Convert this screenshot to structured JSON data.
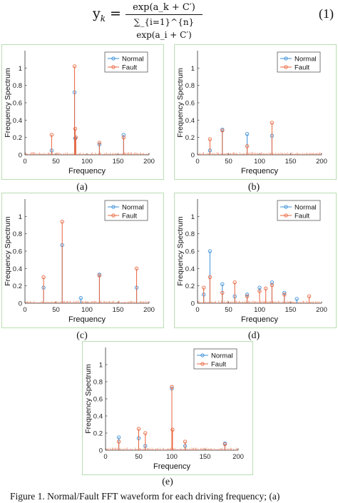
{
  "equation": {
    "lhs": "y",
    "lhs_sub": "k",
    "numerator": "exp(a_k + C′)",
    "denominator": "∑_{i=1}^{n} exp(a_i + C′)",
    "number": "(1)"
  },
  "axis_labels": {
    "x": "Frequency",
    "y": "Frequency Spectrum"
  },
  "legend": {
    "normal": "Normal",
    "fault": "Fault"
  },
  "colors": {
    "normal": "#3a8fd9",
    "fault": "#e8643c",
    "panel_border": "#b9deb3"
  },
  "figure_caption": "Figure 1.   Normal/Fault FFT waveform for each driving frequency; (a)",
  "chart_data": [
    {
      "type": "line",
      "panel": "(a)",
      "xlim": [
        0,
        200
      ],
      "ylim": [
        0,
        1.2
      ],
      "xticks": [
        0,
        50,
        100,
        150,
        200
      ],
      "yticks": [
        0,
        0.2,
        0.4,
        0.6,
        0.8,
        1
      ],
      "series": [
        {
          "name": "Normal",
          "x": [
            43,
            80,
            81,
            120,
            159
          ],
          "y": [
            0.05,
            0.72,
            0.19,
            0.12,
            0.23
          ]
        },
        {
          "name": "Fault",
          "x": [
            43,
            80,
            81,
            82,
            120,
            159
          ],
          "y": [
            0.23,
            1.02,
            0.3,
            0.2,
            0.14,
            0.2
          ]
        }
      ]
    },
    {
      "type": "line",
      "panel": "(b)",
      "xlim": [
        0,
        200
      ],
      "ylim": [
        0,
        1.2
      ],
      "xticks": [
        0,
        50,
        100,
        150,
        200
      ],
      "yticks": [
        0,
        0.2,
        0.4,
        0.6,
        0.8,
        1
      ],
      "series": [
        {
          "name": "Normal",
          "x": [
            20,
            40,
            80,
            120
          ],
          "y": [
            0.05,
            0.29,
            0.24,
            0.22
          ]
        },
        {
          "name": "Fault",
          "x": [
            20,
            40,
            80,
            120
          ],
          "y": [
            0.18,
            0.28,
            0.1,
            0.37
          ]
        }
      ]
    },
    {
      "type": "line",
      "panel": "(c)",
      "xlim": [
        0,
        200
      ],
      "ylim": [
        0,
        1.2
      ],
      "xticks": [
        0,
        50,
        100,
        150,
        200
      ],
      "yticks": [
        0,
        0.2,
        0.4,
        0.6,
        0.8,
        1
      ],
      "series": [
        {
          "name": "Normal",
          "x": [
            30,
            60,
            90,
            120,
            180
          ],
          "y": [
            0.18,
            0.67,
            0.06,
            0.33,
            0.18
          ]
        },
        {
          "name": "Fault",
          "x": [
            30,
            60,
            120,
            180
          ],
          "y": [
            0.3,
            0.94,
            0.32,
            0.4
          ]
        }
      ]
    },
    {
      "type": "line",
      "panel": "(d)",
      "xlim": [
        0,
        200
      ],
      "ylim": [
        0,
        1.2
      ],
      "xticks": [
        0,
        50,
        100,
        150,
        200
      ],
      "yticks": [
        0,
        0.2,
        0.4,
        0.6,
        0.8,
        1
      ],
      "series": [
        {
          "name": "Normal",
          "x": [
            10,
            20,
            40,
            60,
            80,
            100,
            120,
            140,
            160
          ],
          "y": [
            0.1,
            0.6,
            0.22,
            0.08,
            0.1,
            0.18,
            0.24,
            0.12,
            0.05
          ]
        },
        {
          "name": "Fault",
          "x": [
            10,
            20,
            40,
            60,
            80,
            100,
            110,
            120,
            140,
            180
          ],
          "y": [
            0.18,
            0.3,
            0.12,
            0.24,
            0.08,
            0.14,
            0.17,
            0.21,
            0.1,
            0.08
          ]
        }
      ]
    },
    {
      "type": "line",
      "panel": "(e)",
      "xlim": [
        0,
        200
      ],
      "ylim": [
        0,
        1.2
      ],
      "xticks": [
        0,
        50,
        100,
        150,
        200
      ],
      "yticks": [
        0,
        0.2,
        0.4,
        0.6,
        0.8,
        1
      ],
      "series": [
        {
          "name": "Normal",
          "x": [
            20,
            50,
            60,
            100,
            120,
            180
          ],
          "y": [
            0.15,
            0.14,
            0.05,
            0.72,
            0.05,
            0.08
          ]
        },
        {
          "name": "Fault",
          "x": [
            20,
            50,
            60,
            100,
            101,
            120,
            180
          ],
          "y": [
            0.1,
            0.25,
            0.2,
            0.74,
            0.24,
            0.1,
            0.07
          ]
        }
      ]
    }
  ],
  "captions": [
    "(a)",
    "(b)",
    "(c)",
    "(d)",
    "(e)"
  ]
}
